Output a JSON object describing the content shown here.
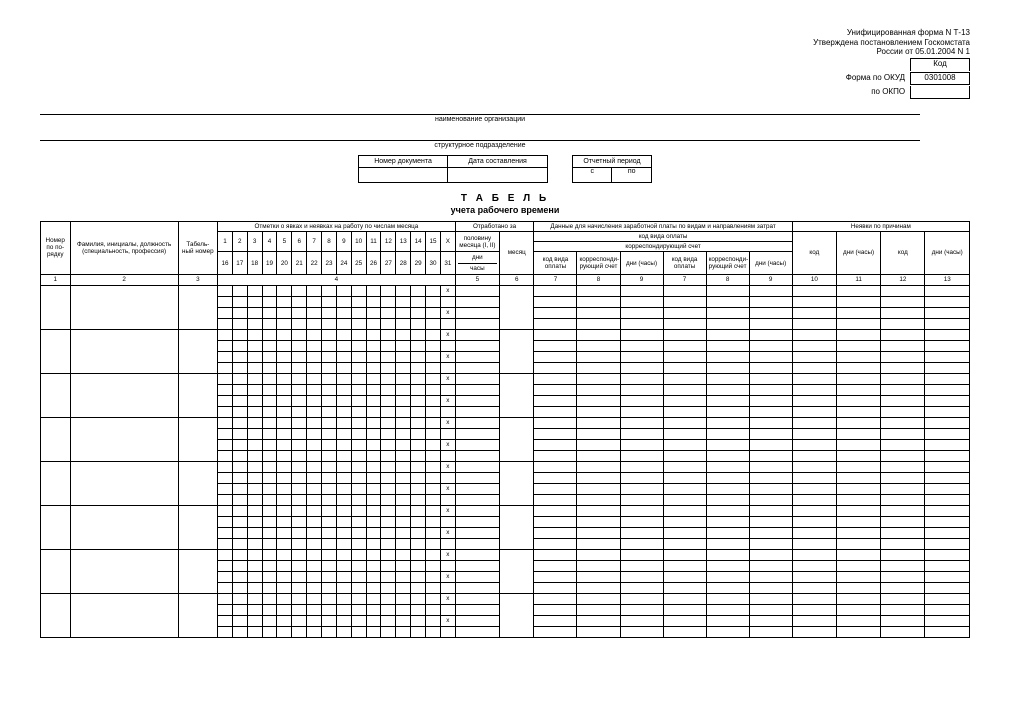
{
  "header": {
    "line1": "Унифицированная форма N Т-13",
    "line2": "Утверждена постановлением Госкомстата",
    "line3": "России от 05.01.2004 N 1",
    "code_label": "Код",
    "okud_label": "Форма по ОКУД",
    "okud_code": "0301008",
    "okpo_label": "по ОКПО",
    "org_caption": "наименование организации",
    "subdiv_caption": "структурное подразделение"
  },
  "docmeta": {
    "docnum_label": "Номер документа",
    "date_label": "Дата составления",
    "period_label": "Отчетный период",
    "from": "с",
    "to": "по"
  },
  "title": {
    "main": "Т А Б Е Л Ь",
    "sub": "учета рабочего времени"
  },
  "cols": {
    "num": "Номер по по- рядку",
    "name": "Фамилия, инициалы, должность (специальность, профессия)",
    "tab": "Табель- ный номер",
    "marks": "Отметки о явках и неявках на работу по числам месяца",
    "worked": "Отработано за",
    "half": "половину месяца (I, II)",
    "total": "месяц",
    "days": "дни",
    "hours": "часы",
    "paydata": "Данные для начисления заработной платы по видам и направлениям затрат",
    "paytype": "код вида оплаты",
    "corr": "корреспондирующий счет",
    "paytype_s": "код вида оплаты",
    "corr_s": "корреспонди- рующий счет",
    "dayshours": "дни (часы)",
    "absence": "Неявки по причинам",
    "abs_code": "код",
    "abs_days": "дни (часы)",
    "col_nums": [
      "1",
      "2",
      "3",
      "4",
      "5",
      "6",
      "7",
      "8",
      "9",
      "7",
      "8",
      "9",
      "10",
      "11",
      "12",
      "13"
    ]
  },
  "daynums": {
    "r1": [
      "1",
      "2",
      "3",
      "4",
      "5",
      "6",
      "7",
      "8",
      "9",
      "10",
      "11",
      "12",
      "13",
      "14",
      "15",
      "X"
    ],
    "r2": [
      "16",
      "17",
      "18",
      "19",
      "20",
      "21",
      "22",
      "23",
      "24",
      "25",
      "26",
      "27",
      "28",
      "29",
      "30",
      "31"
    ]
  },
  "x": "x",
  "data_rows": 8,
  "colors": {
    "border": "#000000",
    "bg": "#ffffff",
    "text": "#000000"
  },
  "font": {
    "family": "Arial",
    "body_pt": 7,
    "small_pt": 6.3
  }
}
